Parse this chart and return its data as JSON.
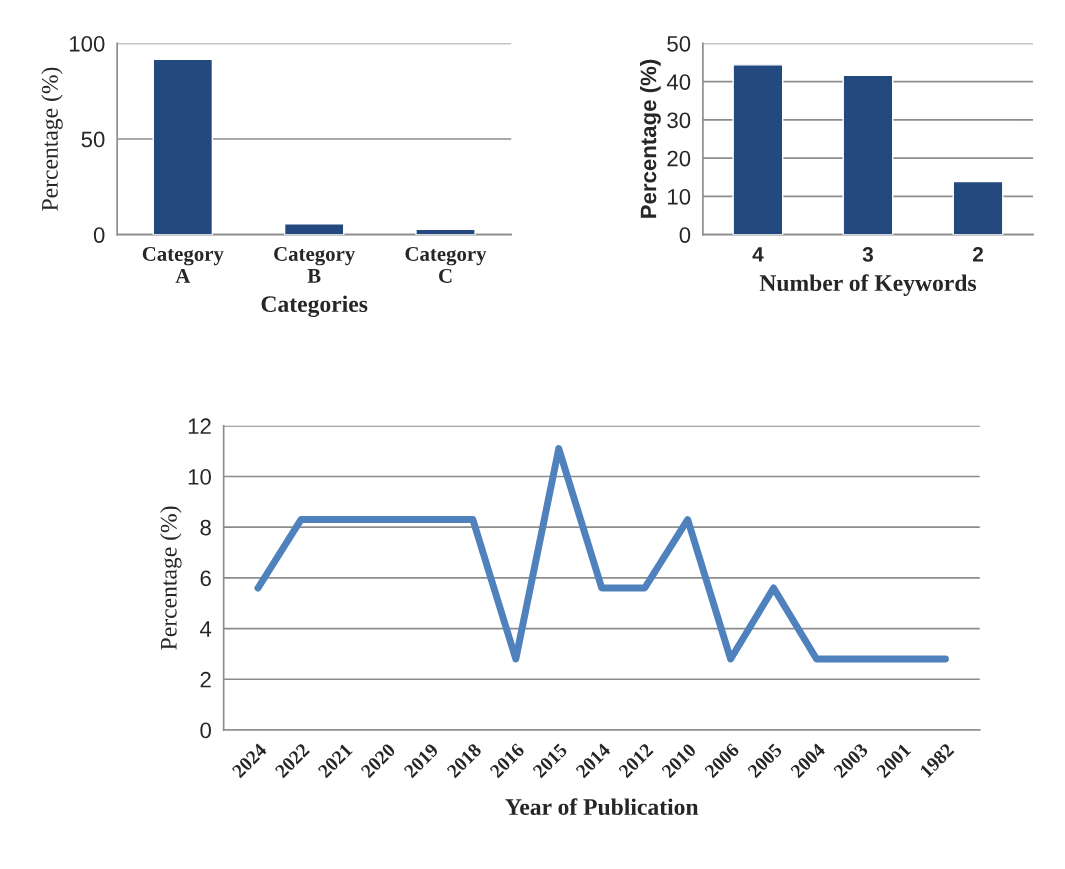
{
  "chart_data": [
    {
      "type": "bar",
      "categories": [
        "Category\nA",
        "Category\nB",
        "Category\nC"
      ],
      "values": [
        91.7,
        5.6,
        2.8
      ],
      "color": "#23497e",
      "xlabel": "Categories",
      "ylabel": "Percentage (%)",
      "ylim": [
        0,
        100
      ],
      "yticks": [
        0,
        50,
        100
      ],
      "grid": "y",
      "legend": false
    },
    {
      "type": "bar",
      "categories": [
        "4",
        "3",
        "2"
      ],
      "values": [
        44.4,
        41.7,
        13.9
      ],
      "color": "#23497e",
      "xlabel": "Number of Keywords",
      "ylabel": "Percentage (%)",
      "ylim": [
        0,
        50
      ],
      "yticks": [
        0,
        10,
        20,
        30,
        40,
        50
      ],
      "grid": "y",
      "legend": false
    },
    {
      "type": "line",
      "categories": [
        "2024",
        "2022",
        "2021",
        "2020",
        "2019",
        "2018",
        "2016",
        "2015",
        "2014",
        "2012",
        "2010",
        "2006",
        "2005",
        "2004",
        "2003",
        "2001",
        "1982"
      ],
      "values": [
        5.6,
        8.3,
        8.3,
        8.3,
        8.3,
        8.3,
        2.8,
        11.1,
        5.6,
        5.6,
        8.3,
        2.8,
        5.6,
        2.8,
        2.8,
        2.8,
        2.8
      ],
      "color": "#4f81bd",
      "xlabel": "Year of Publication",
      "ylabel": "Percentage (%)",
      "ylim": [
        0,
        12
      ],
      "yticks": [
        0,
        2,
        4,
        6,
        8,
        10,
        12
      ],
      "grid": "y",
      "marker": "none",
      "line_style": "solid",
      "legend": false
    }
  ]
}
